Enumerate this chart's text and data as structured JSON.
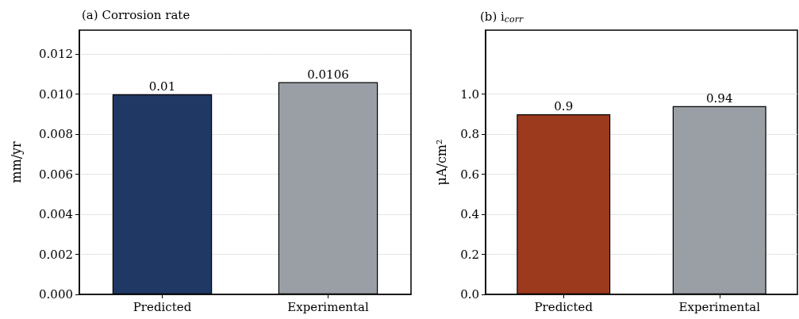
{
  "chart_data": [
    {
      "type": "bar",
      "title": "(a) Corrosion rate",
      "ylabel": "mm/yr",
      "categories": [
        "Predicted",
        "Experimental"
      ],
      "values": [
        0.01,
        0.0106
      ],
      "colors": [
        "#1f3864",
        "#9a9fa6"
      ],
      "ylim": [
        0,
        0.0132
      ],
      "yticks": [
        {
          "value": 0,
          "label": "0.000"
        },
        {
          "value": 0.002,
          "label": "0.002"
        },
        {
          "value": 0.004,
          "label": "0.004"
        },
        {
          "value": 0.006,
          "label": "0.006"
        },
        {
          "value": 0.008,
          "label": "0.008"
        },
        {
          "value": 0.01,
          "label": "0.010"
        },
        {
          "value": 0.012,
          "label": "0.012"
        }
      ],
      "grid": "y",
      "data_labels": true
    },
    {
      "type": "bar",
      "title": "(b) i$_{corr}$",
      "ylabel": "μA/cm²",
      "categories": [
        "Predicted",
        "Experimental"
      ],
      "values": [
        0.9,
        0.94
      ],
      "colors": [
        "#9c3a1e",
        "#9a9fa6"
      ],
      "ylim": [
        0,
        1.32
      ],
      "yticks": [
        {
          "value": 0,
          "label": "0.0"
        },
        {
          "value": 0.2,
          "label": "0.2"
        },
        {
          "value": 0.4,
          "label": "0.4"
        },
        {
          "value": 0.6,
          "label": "0.6"
        },
        {
          "value": 0.8,
          "label": "0.8"
        },
        {
          "value": 1.0,
          "label": "1.0"
        }
      ],
      "grid": "y",
      "data_labels": true
    }
  ]
}
